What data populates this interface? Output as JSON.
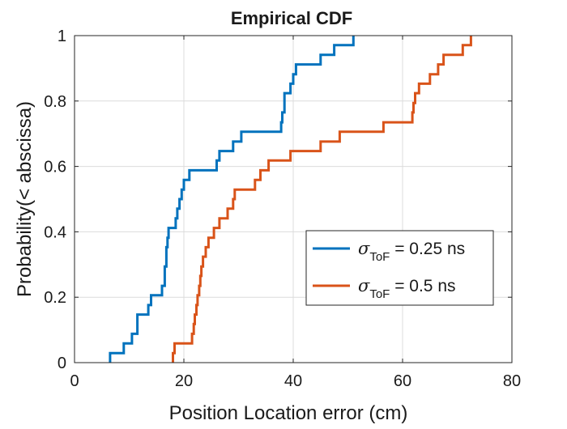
{
  "chart_data": {
    "type": "line",
    "subtype": "step",
    "title": "Empirical CDF",
    "xlabel": "Position Location error (cm)",
    "ylabel": "Probability(< abscissa)",
    "xlim": [
      0,
      80
    ],
    "ylim": [
      0,
      1
    ],
    "xticks": [
      "0",
      "20",
      "40",
      "60",
      "80"
    ],
    "yticks": [
      "0",
      "0.2",
      "0.4",
      "0.6",
      "0.8",
      "1"
    ],
    "grid": true,
    "legend_position": "lower-right",
    "series": [
      {
        "name": "σToF = 0.25 ns",
        "legend_symbol": "σ",
        "legend_subscript": "ToF",
        "legend_rest": " = 0.25 ns",
        "color": "#0072BD",
        "points": [
          [
            6.5,
            0.0
          ],
          [
            6.5,
            0.029
          ],
          [
            9.0,
            0.029
          ],
          [
            9.0,
            0.059
          ],
          [
            10.5,
            0.059
          ],
          [
            10.5,
            0.088
          ],
          [
            11.5,
            0.088
          ],
          [
            11.5,
            0.147
          ],
          [
            13.5,
            0.147
          ],
          [
            13.5,
            0.176
          ],
          [
            14.0,
            0.176
          ],
          [
            14.0,
            0.206
          ],
          [
            16.0,
            0.206
          ],
          [
            16.0,
            0.235
          ],
          [
            16.5,
            0.235
          ],
          [
            16.5,
            0.294
          ],
          [
            16.8,
            0.294
          ],
          [
            16.8,
            0.353
          ],
          [
            17.0,
            0.353
          ],
          [
            17.0,
            0.382
          ],
          [
            17.2,
            0.382
          ],
          [
            17.2,
            0.412
          ],
          [
            18.5,
            0.412
          ],
          [
            18.5,
            0.441
          ],
          [
            18.8,
            0.441
          ],
          [
            18.8,
            0.471
          ],
          [
            19.2,
            0.471
          ],
          [
            19.2,
            0.5
          ],
          [
            19.6,
            0.5
          ],
          [
            19.6,
            0.529
          ],
          [
            20.0,
            0.529
          ],
          [
            20.0,
            0.559
          ],
          [
            21.0,
            0.559
          ],
          [
            21.0,
            0.588
          ],
          [
            26.0,
            0.588
          ],
          [
            26.0,
            0.618
          ],
          [
            26.5,
            0.618
          ],
          [
            26.5,
            0.647
          ],
          [
            29.0,
            0.647
          ],
          [
            29.0,
            0.676
          ],
          [
            30.5,
            0.676
          ],
          [
            30.5,
            0.706
          ],
          [
            37.8,
            0.706
          ],
          [
            37.8,
            0.735
          ],
          [
            38.0,
            0.735
          ],
          [
            38.0,
            0.765
          ],
          [
            38.4,
            0.765
          ],
          [
            38.4,
            0.824
          ],
          [
            39.5,
            0.824
          ],
          [
            39.5,
            0.853
          ],
          [
            40.0,
            0.853
          ],
          [
            40.0,
            0.882
          ],
          [
            40.5,
            0.882
          ],
          [
            40.5,
            0.912
          ],
          [
            45.0,
            0.912
          ],
          [
            45.0,
            0.941
          ],
          [
            47.5,
            0.941
          ],
          [
            47.5,
            0.971
          ],
          [
            51.0,
            0.971
          ],
          [
            51.0,
            1.0
          ]
        ]
      },
      {
        "name": "σToF = 0.5 ns",
        "legend_symbol": "σ",
        "legend_subscript": "ToF",
        "legend_rest": " = 0.5 ns",
        "color": "#D95319",
        "points": [
          [
            18.0,
            0.0
          ],
          [
            18.0,
            0.029
          ],
          [
            18.3,
            0.029
          ],
          [
            18.3,
            0.059
          ],
          [
            21.5,
            0.059
          ],
          [
            21.5,
            0.088
          ],
          [
            21.8,
            0.088
          ],
          [
            21.8,
            0.118
          ],
          [
            22.0,
            0.118
          ],
          [
            22.0,
            0.147
          ],
          [
            22.3,
            0.147
          ],
          [
            22.3,
            0.176
          ],
          [
            22.5,
            0.176
          ],
          [
            22.5,
            0.206
          ],
          [
            22.8,
            0.206
          ],
          [
            22.8,
            0.235
          ],
          [
            23.0,
            0.235
          ],
          [
            23.0,
            0.265
          ],
          [
            23.2,
            0.265
          ],
          [
            23.2,
            0.294
          ],
          [
            23.5,
            0.294
          ],
          [
            23.5,
            0.324
          ],
          [
            24.0,
            0.324
          ],
          [
            24.0,
            0.353
          ],
          [
            24.5,
            0.353
          ],
          [
            24.5,
            0.382
          ],
          [
            25.5,
            0.382
          ],
          [
            25.5,
            0.412
          ],
          [
            26.5,
            0.412
          ],
          [
            26.5,
            0.441
          ],
          [
            28.0,
            0.441
          ],
          [
            28.0,
            0.471
          ],
          [
            29.0,
            0.471
          ],
          [
            29.0,
            0.5
          ],
          [
            29.3,
            0.5
          ],
          [
            29.3,
            0.529
          ],
          [
            33.0,
            0.529
          ],
          [
            33.0,
            0.559
          ],
          [
            34.0,
            0.559
          ],
          [
            34.0,
            0.588
          ],
          [
            35.5,
            0.588
          ],
          [
            35.5,
            0.618
          ],
          [
            39.5,
            0.618
          ],
          [
            39.5,
            0.647
          ],
          [
            45.0,
            0.647
          ],
          [
            45.0,
            0.676
          ],
          [
            48.5,
            0.676
          ],
          [
            48.5,
            0.706
          ],
          [
            56.5,
            0.706
          ],
          [
            56.5,
            0.735
          ],
          [
            61.8,
            0.735
          ],
          [
            61.8,
            0.765
          ],
          [
            62.0,
            0.765
          ],
          [
            62.0,
            0.794
          ],
          [
            62.3,
            0.794
          ],
          [
            62.3,
            0.824
          ],
          [
            63.0,
            0.824
          ],
          [
            63.0,
            0.853
          ],
          [
            65.0,
            0.853
          ],
          [
            65.0,
            0.882
          ],
          [
            66.5,
            0.882
          ],
          [
            66.5,
            0.912
          ],
          [
            67.5,
            0.912
          ],
          [
            67.5,
            0.941
          ],
          [
            71.0,
            0.941
          ],
          [
            71.0,
            0.971
          ],
          [
            72.5,
            0.971
          ],
          [
            72.5,
            1.0
          ]
        ]
      }
    ]
  }
}
